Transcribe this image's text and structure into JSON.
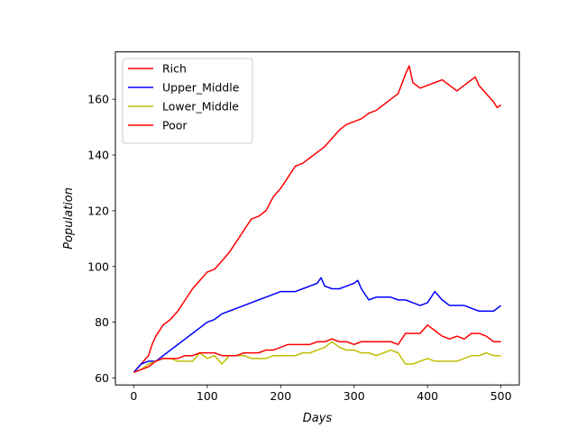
{
  "chart_data": {
    "type": "line",
    "xlabel": "Days",
    "ylabel": "Population",
    "xlim": [
      -25,
      525
    ],
    "ylim": [
      57.5,
      177
    ],
    "xticks": [
      0,
      100,
      200,
      300,
      400,
      500
    ],
    "yticks": [
      60,
      80,
      100,
      120,
      140,
      160
    ],
    "grid": false,
    "legend_position": "top-left",
    "series": [
      {
        "name": "Rich",
        "color": "#ff0000",
        "x": [
          0,
          10,
          20,
          25,
          30,
          40,
          50,
          60,
          70,
          80,
          90,
          100,
          110,
          120,
          130,
          140,
          150,
          160,
          170,
          180,
          190,
          200,
          210,
          220,
          230,
          240,
          250,
          260,
          270,
          280,
          290,
          300,
          310,
          320,
          330,
          340,
          350,
          360,
          370,
          375,
          380,
          390,
          400,
          410,
          420,
          430,
          440,
          450,
          460,
          465,
          470,
          480,
          490,
          495,
          500
        ],
        "y": [
          62,
          65,
          68,
          72,
          75,
          79,
          81,
          84,
          88,
          92,
          95,
          98,
          99,
          102,
          105,
          109,
          113,
          117,
          118,
          120,
          125,
          128,
          132,
          136,
          137,
          139,
          141,
          143,
          146,
          149,
          151,
          152,
          153,
          155,
          156,
          158,
          160,
          162,
          169,
          172,
          166,
          164,
          165,
          166,
          167,
          165,
          163,
          165,
          167,
          168,
          165,
          162,
          159,
          157,
          158
        ]
      },
      {
        "name": "Upper_Middle",
        "color": "#0000ff",
        "x": [
          0,
          10,
          20,
          30,
          40,
          50,
          60,
          70,
          80,
          90,
          100,
          110,
          120,
          130,
          140,
          150,
          160,
          170,
          180,
          190,
          200,
          210,
          220,
          230,
          240,
          250,
          255,
          260,
          270,
          280,
          290,
          300,
          305,
          310,
          320,
          330,
          340,
          350,
          360,
          370,
          380,
          390,
          400,
          410,
          420,
          430,
          440,
          450,
          460,
          470,
          480,
          490,
          500
        ],
        "y": [
          62,
          65,
          66,
          66,
          68,
          70,
          72,
          74,
          76,
          78,
          80,
          81,
          83,
          84,
          85,
          86,
          87,
          88,
          89,
          90,
          91,
          91,
          91,
          92,
          93,
          94,
          96,
          93,
          92,
          92,
          93,
          94,
          95,
          92,
          88,
          89,
          89,
          89,
          88,
          88,
          87,
          86,
          87,
          91,
          88,
          86,
          86,
          86,
          85,
          84,
          84,
          84,
          86
        ]
      },
      {
        "name": "Lower_Middle",
        "color": "#bfbf00",
        "x": [
          0,
          10,
          20,
          30,
          40,
          50,
          60,
          70,
          80,
          90,
          100,
          110,
          120,
          130,
          140,
          150,
          160,
          170,
          180,
          190,
          200,
          210,
          220,
          230,
          240,
          250,
          260,
          270,
          280,
          290,
          300,
          310,
          320,
          330,
          340,
          350,
          360,
          370,
          380,
          390,
          400,
          410,
          420,
          430,
          440,
          450,
          460,
          470,
          480,
          490,
          500
        ],
        "y": [
          62,
          63,
          65,
          66,
          67,
          67,
          66,
          66,
          66,
          69,
          67,
          68,
          65,
          68,
          68,
          68,
          67,
          67,
          67,
          68,
          68,
          68,
          68,
          69,
          69,
          70,
          71,
          73,
          71,
          70,
          70,
          69,
          69,
          68,
          69,
          70,
          69,
          65,
          65,
          66,
          67,
          66,
          66,
          66,
          66,
          67,
          68,
          68,
          69,
          68,
          68
        ]
      },
      {
        "name": "Poor",
        "color": "#ff0000",
        "x": [
          0,
          10,
          20,
          30,
          40,
          50,
          60,
          70,
          80,
          90,
          100,
          110,
          120,
          130,
          140,
          150,
          160,
          170,
          180,
          190,
          200,
          210,
          220,
          230,
          240,
          250,
          260,
          270,
          280,
          290,
          300,
          310,
          320,
          330,
          340,
          350,
          360,
          370,
          380,
          390,
          400,
          410,
          420,
          430,
          440,
          450,
          460,
          470,
          480,
          490,
          500
        ],
        "y": [
          62,
          63,
          64,
          66,
          67,
          67,
          67,
          68,
          68,
          69,
          69,
          69,
          68,
          68,
          68,
          69,
          69,
          69,
          70,
          70,
          71,
          72,
          72,
          72,
          72,
          73,
          73,
          74,
          73,
          73,
          72,
          73,
          73,
          73,
          73,
          73,
          72,
          76,
          76,
          76,
          79,
          77,
          75,
          74,
          75,
          74,
          76,
          76,
          75,
          73,
          73
        ]
      }
    ]
  }
}
